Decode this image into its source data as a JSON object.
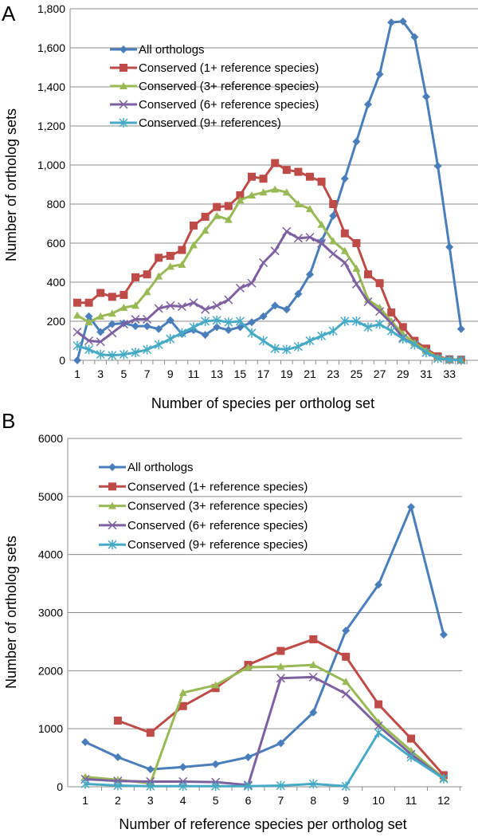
{
  "colors": {
    "All orthologs": "#4a7ebb",
    "1+": "#be4b48",
    "3+": "#98b954",
    "6+": "#7d60a0",
    "9+": "#46aac5"
  },
  "chart_data": [
    {
      "panel": "A",
      "type": "line",
      "xlabel": "Number of species per ortholog set",
      "ylabel": "Number of ortholog sets",
      "ylim": [
        0,
        1800
      ],
      "yticks": [
        "0",
        "200",
        "400",
        "600",
        "800",
        "1,000",
        "1,200",
        "1,400",
        "1,600",
        "1,800"
      ],
      "xticks": [
        "1",
        "3",
        "5",
        "7",
        "9",
        "11",
        "13",
        "15",
        "17",
        "19",
        "21",
        "23",
        "25",
        "27",
        "29",
        "31",
        "33"
      ],
      "grid": true,
      "legend": "top-left",
      "x": [
        1,
        2,
        3,
        4,
        5,
        6,
        7,
        8,
        9,
        10,
        11,
        12,
        13,
        14,
        15,
        16,
        17,
        18,
        19,
        20,
        21,
        22,
        23,
        24,
        25,
        26,
        27,
        28,
        29,
        30,
        31,
        32,
        33,
        34
      ],
      "series": [
        {
          "name": "All orthologs",
          "marker": "diamond",
          "values": [
            0,
            225,
            145,
            185,
            190,
            175,
            175,
            160,
            205,
            135,
            155,
            130,
            170,
            155,
            170,
            195,
            225,
            280,
            260,
            340,
            440,
            610,
            740,
            930,
            1120,
            1310,
            1465,
            1730,
            1735,
            1655,
            1350,
            995,
            580,
            160
          ]
        },
        {
          "name": "Conserved (1+ reference species)",
          "marker": "square",
          "values": [
            295,
            295,
            345,
            325,
            335,
            425,
            440,
            525,
            535,
            565,
            690,
            735,
            785,
            790,
            845,
            940,
            930,
            1010,
            975,
            965,
            940,
            915,
            800,
            650,
            600,
            440,
            395,
            245,
            170,
            100,
            60,
            20,
            5,
            3
          ]
        },
        {
          "name": "Conserved (3+ reference species)",
          "marker": "triangle",
          "values": [
            230,
            195,
            225,
            240,
            270,
            280,
            350,
            430,
            480,
            490,
            590,
            665,
            740,
            720,
            820,
            845,
            860,
            875,
            860,
            800,
            775,
            695,
            610,
            560,
            470,
            310,
            270,
            200,
            135,
            90,
            50,
            15,
            5,
            2
          ]
        },
        {
          "name": "Conserved (6+ reference species)",
          "marker": "x",
          "values": [
            145,
            100,
            95,
            140,
            185,
            210,
            210,
            265,
            280,
            275,
            295,
            260,
            280,
            310,
            370,
            395,
            500,
            560,
            660,
            625,
            630,
            600,
            545,
            500,
            390,
            300,
            250,
            190,
            115,
            80,
            40,
            10,
            3,
            1
          ]
        },
        {
          "name": "Conserved (9+ references)",
          "marker": "asterisk",
          "values": [
            75,
            55,
            30,
            25,
            30,
            40,
            55,
            80,
            110,
            140,
            170,
            200,
            205,
            195,
            200,
            140,
            100,
            60,
            55,
            70,
            100,
            125,
            150,
            200,
            200,
            170,
            185,
            150,
            110,
            80,
            40,
            10,
            3,
            1
          ]
        }
      ]
    },
    {
      "panel": "B",
      "type": "line",
      "xlabel": "Number of reference species per ortholog set",
      "ylabel": "Number of ortholog sets",
      "ylim": [
        0,
        6000
      ],
      "yticks": [
        "0",
        "1000",
        "2000",
        "3000",
        "4000",
        "5000",
        "6000"
      ],
      "xticks": [
        "1",
        "2",
        "3",
        "4",
        "5",
        "6",
        "7",
        "8",
        "9",
        "10",
        "11",
        "12"
      ],
      "grid": true,
      "legend": "top-left",
      "x": [
        1,
        2,
        3,
        4,
        5,
        6,
        7,
        8,
        9,
        10,
        11,
        12
      ],
      "series": [
        {
          "name": "All orthologs",
          "marker": "diamond",
          "values": [
            770,
            510,
            300,
            340,
            390,
            510,
            750,
            1280,
            2690,
            3480,
            4820,
            2620
          ]
        },
        {
          "name": "Conserved (1+ reference species)",
          "marker": "square",
          "values": [
            null,
            1140,
            930,
            1390,
            1700,
            2100,
            2340,
            2540,
            2240,
            1420,
            830,
            200
          ]
        },
        {
          "name": "Conserved (3+ reference species)",
          "marker": "triangle",
          "values": [
            170,
            120,
            60,
            1620,
            1750,
            2060,
            2070,
            2100,
            1810,
            1110,
            620,
            150
          ]
        },
        {
          "name": "Conserved (6+ reference species)",
          "marker": "x",
          "values": [
            130,
            100,
            90,
            90,
            80,
            30,
            1870,
            1890,
            1600,
            1050,
            560,
            140
          ]
        },
        {
          "name": "Conserved (9+ reference species)",
          "marker": "asterisk",
          "values": [
            50,
            20,
            10,
            10,
            10,
            10,
            20,
            50,
            10,
            930,
            510,
            140
          ]
        }
      ]
    }
  ]
}
